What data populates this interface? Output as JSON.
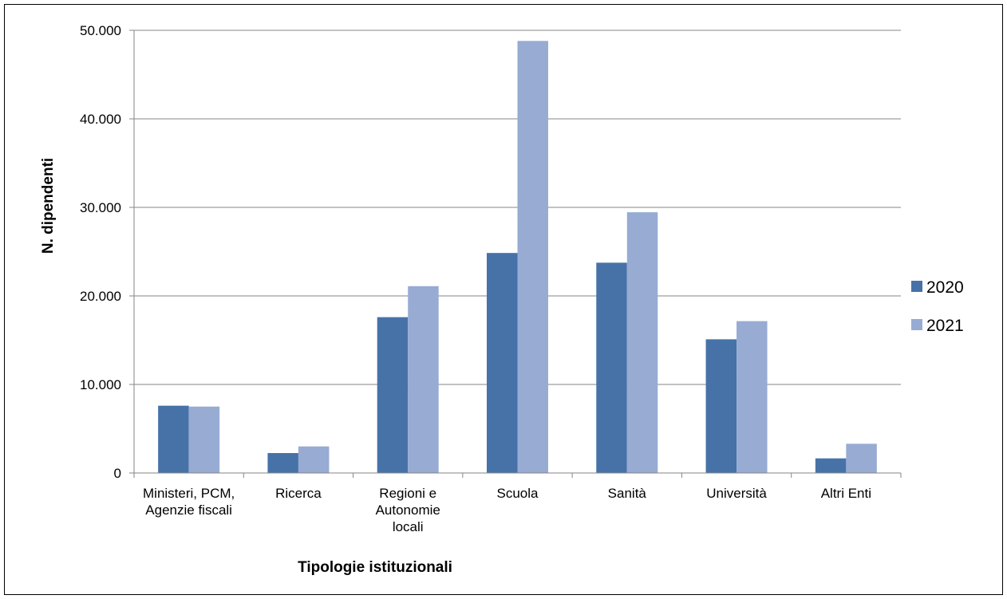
{
  "chart_data": {
    "type": "bar",
    "title": "",
    "xlabel": "Tipologie istituzionali",
    "ylabel": "N. dipendenti",
    "categories": [
      [
        "Ministeri, PCM,",
        "Agenzie fiscali"
      ],
      [
        "Ricerca"
      ],
      [
        "Regioni e",
        "Autonomie",
        "locali"
      ],
      [
        "Scuola"
      ],
      [
        "Sanità"
      ],
      [
        "Università"
      ],
      [
        "Altri Enti"
      ]
    ],
    "series": [
      {
        "name": "2020",
        "color": "#4672A8",
        "values": [
          7600,
          2250,
          17600,
          24850,
          23750,
          15100,
          1650
        ]
      },
      {
        "name": "2021",
        "color": "#97ABD3",
        "values": [
          7500,
          3000,
          21100,
          48800,
          29450,
          17150,
          3300
        ]
      }
    ],
    "ylim": [
      0,
      50000
    ],
    "yticks": [
      0,
      10000,
      20000,
      30000,
      40000,
      50000
    ],
    "ytick_labels": [
      "0",
      "10.000",
      "20.000",
      "30.000",
      "40.000",
      "50.000"
    ],
    "grid": true,
    "legend": "right"
  }
}
